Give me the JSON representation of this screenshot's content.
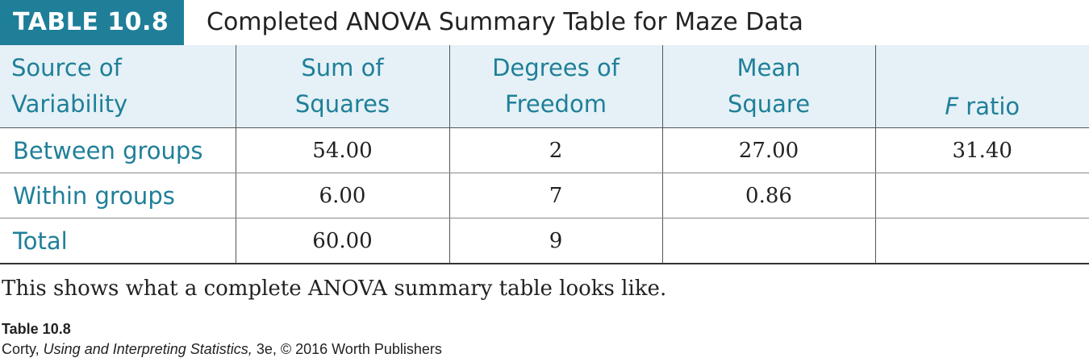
{
  "header": {
    "tag": "TABLE 10.8",
    "title": "Completed ANOVA Summary Table for Maze Data"
  },
  "colors": {
    "accent": "#1f7f99",
    "header_bg": "#e5f1f6"
  },
  "table": {
    "columns": [
      {
        "line1": "Source of",
        "line2": "Variability"
      },
      {
        "line1": "Sum of",
        "line2": "Squares"
      },
      {
        "line1": "Degrees of",
        "line2": "Freedom"
      },
      {
        "line1": "Mean",
        "line2": "Square"
      },
      {
        "line1": "",
        "line2": "F",
        "line2_rest": " ratio"
      }
    ],
    "rows": [
      {
        "source": "Between groups",
        "ss": "54.00",
        "df": "2",
        "ms": "27.00",
        "f": "31.40"
      },
      {
        "source": "Within groups",
        "ss": "6.00",
        "df": "7",
        "ms": "0.86",
        "f": ""
      },
      {
        "source": "Total",
        "ss": "60.00",
        "df": "9",
        "ms": "",
        "f": ""
      }
    ]
  },
  "caption": "This shows what a complete ANOVA summary table looks like.",
  "source": {
    "label": "Table 10.8",
    "author": "Corty, ",
    "book": "Using and Interpreting Statistics,",
    "rest": " 3e, © 2016 Worth Publishers"
  }
}
